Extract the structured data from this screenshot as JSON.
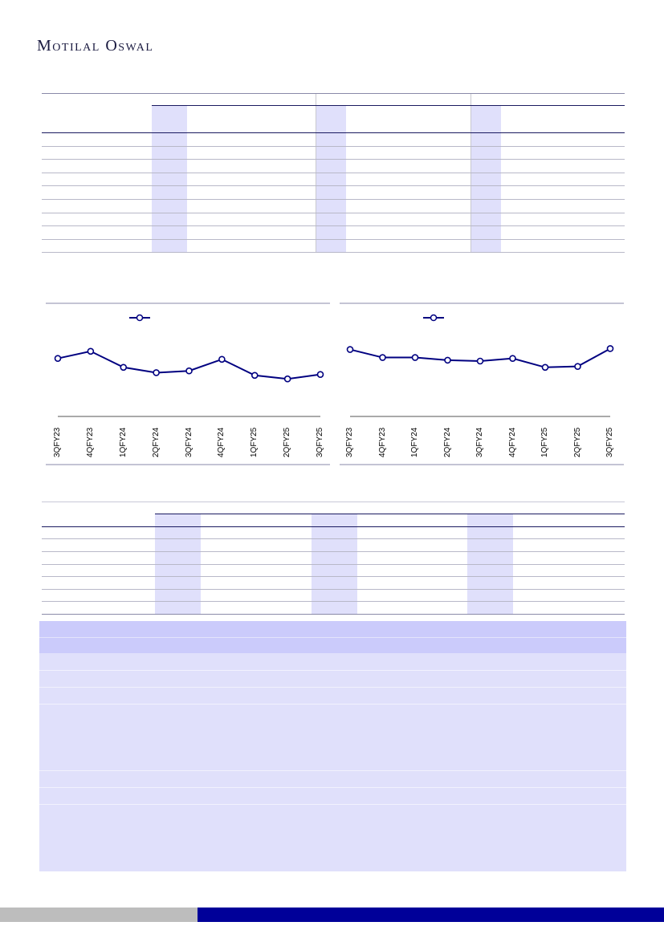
{
  "header": {
    "brand": "Motilal Oswal"
  },
  "charts": [
    {
      "chart_data": {
        "type": "line",
        "categories": [
          "3QFY23",
          "4QFY23",
          "1QFY24",
          "2QFY24",
          "3QFY24",
          "4QFY24",
          "1QFY25",
          "2QFY25",
          "3QFY25"
        ],
        "series": [
          {
            "values": [
              50,
              58,
              40,
              34,
              36,
              49,
              31,
              27,
              32
            ]
          }
        ],
        "title": "",
        "xlabel": "",
        "ylabel": "",
        "legend": "top-left"
      }
    },
    {
      "chart_data": {
        "type": "line",
        "categories": [
          "3QFY23",
          "4QFY23",
          "1QFY24",
          "2QFY24",
          "3QFY24",
          "4QFY24",
          "1QFY25",
          "2QFY25",
          "3QFY25"
        ],
        "series": [
          {
            "values": [
              60,
              51,
              51,
              48,
              47,
              50,
              40,
              41,
              61
            ]
          }
        ],
        "title": "",
        "xlabel": "",
        "ylabel": "",
        "legend": "top-left"
      }
    }
  ],
  "colors": {
    "navy": "#000080",
    "shade": "#e0e0fb",
    "header_shade": "#cbcbfb",
    "footer_blue": "#000099",
    "footer_grey": "#bdbdbd"
  }
}
